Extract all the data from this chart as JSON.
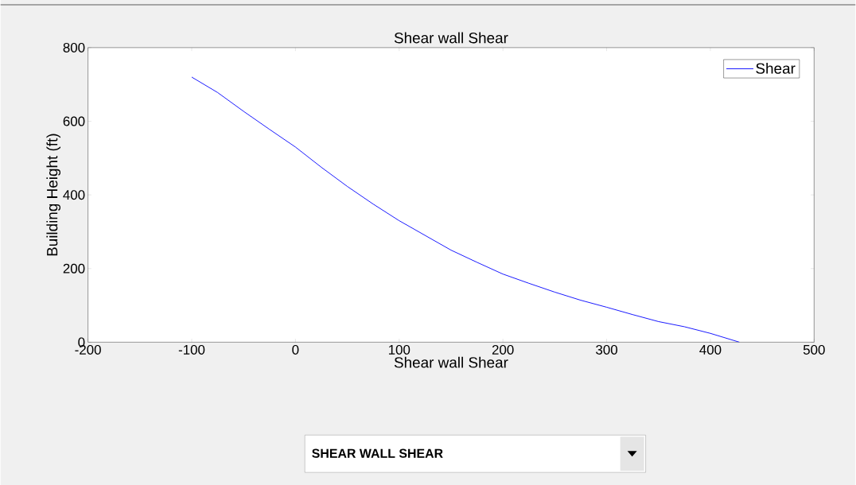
{
  "chart_data": {
    "type": "line",
    "title": "Shear wall Shear",
    "xlabel": "Shear wall Shear",
    "ylabel": "Building Height (ft)",
    "series": [
      {
        "name": "Shear",
        "color": "#0000ff",
        "x": [
          -100,
          -75,
          -50,
          -25,
          0,
          25,
          50,
          75,
          100,
          125,
          150,
          175,
          200,
          225,
          250,
          275,
          300,
          325,
          350,
          375,
          400,
          428
        ],
        "values": [
          720,
          678,
          627,
          578,
          530,
          475,
          423,
          375,
          330,
          290,
          250,
          217,
          185,
          160,
          136,
          114,
          95,
          75,
          56,
          42,
          24,
          0
        ]
      }
    ],
    "xlim": [
      -200,
      500
    ],
    "ylim": [
      0,
      800
    ],
    "xticks": [
      -200,
      -100,
      0,
      100,
      200,
      300,
      400,
      500
    ],
    "yticks": [
      0,
      200,
      400,
      600,
      800
    ],
    "legend": "top right",
    "annotations": [
      "SHEAR WALL SHEAR"
    ]
  }
}
